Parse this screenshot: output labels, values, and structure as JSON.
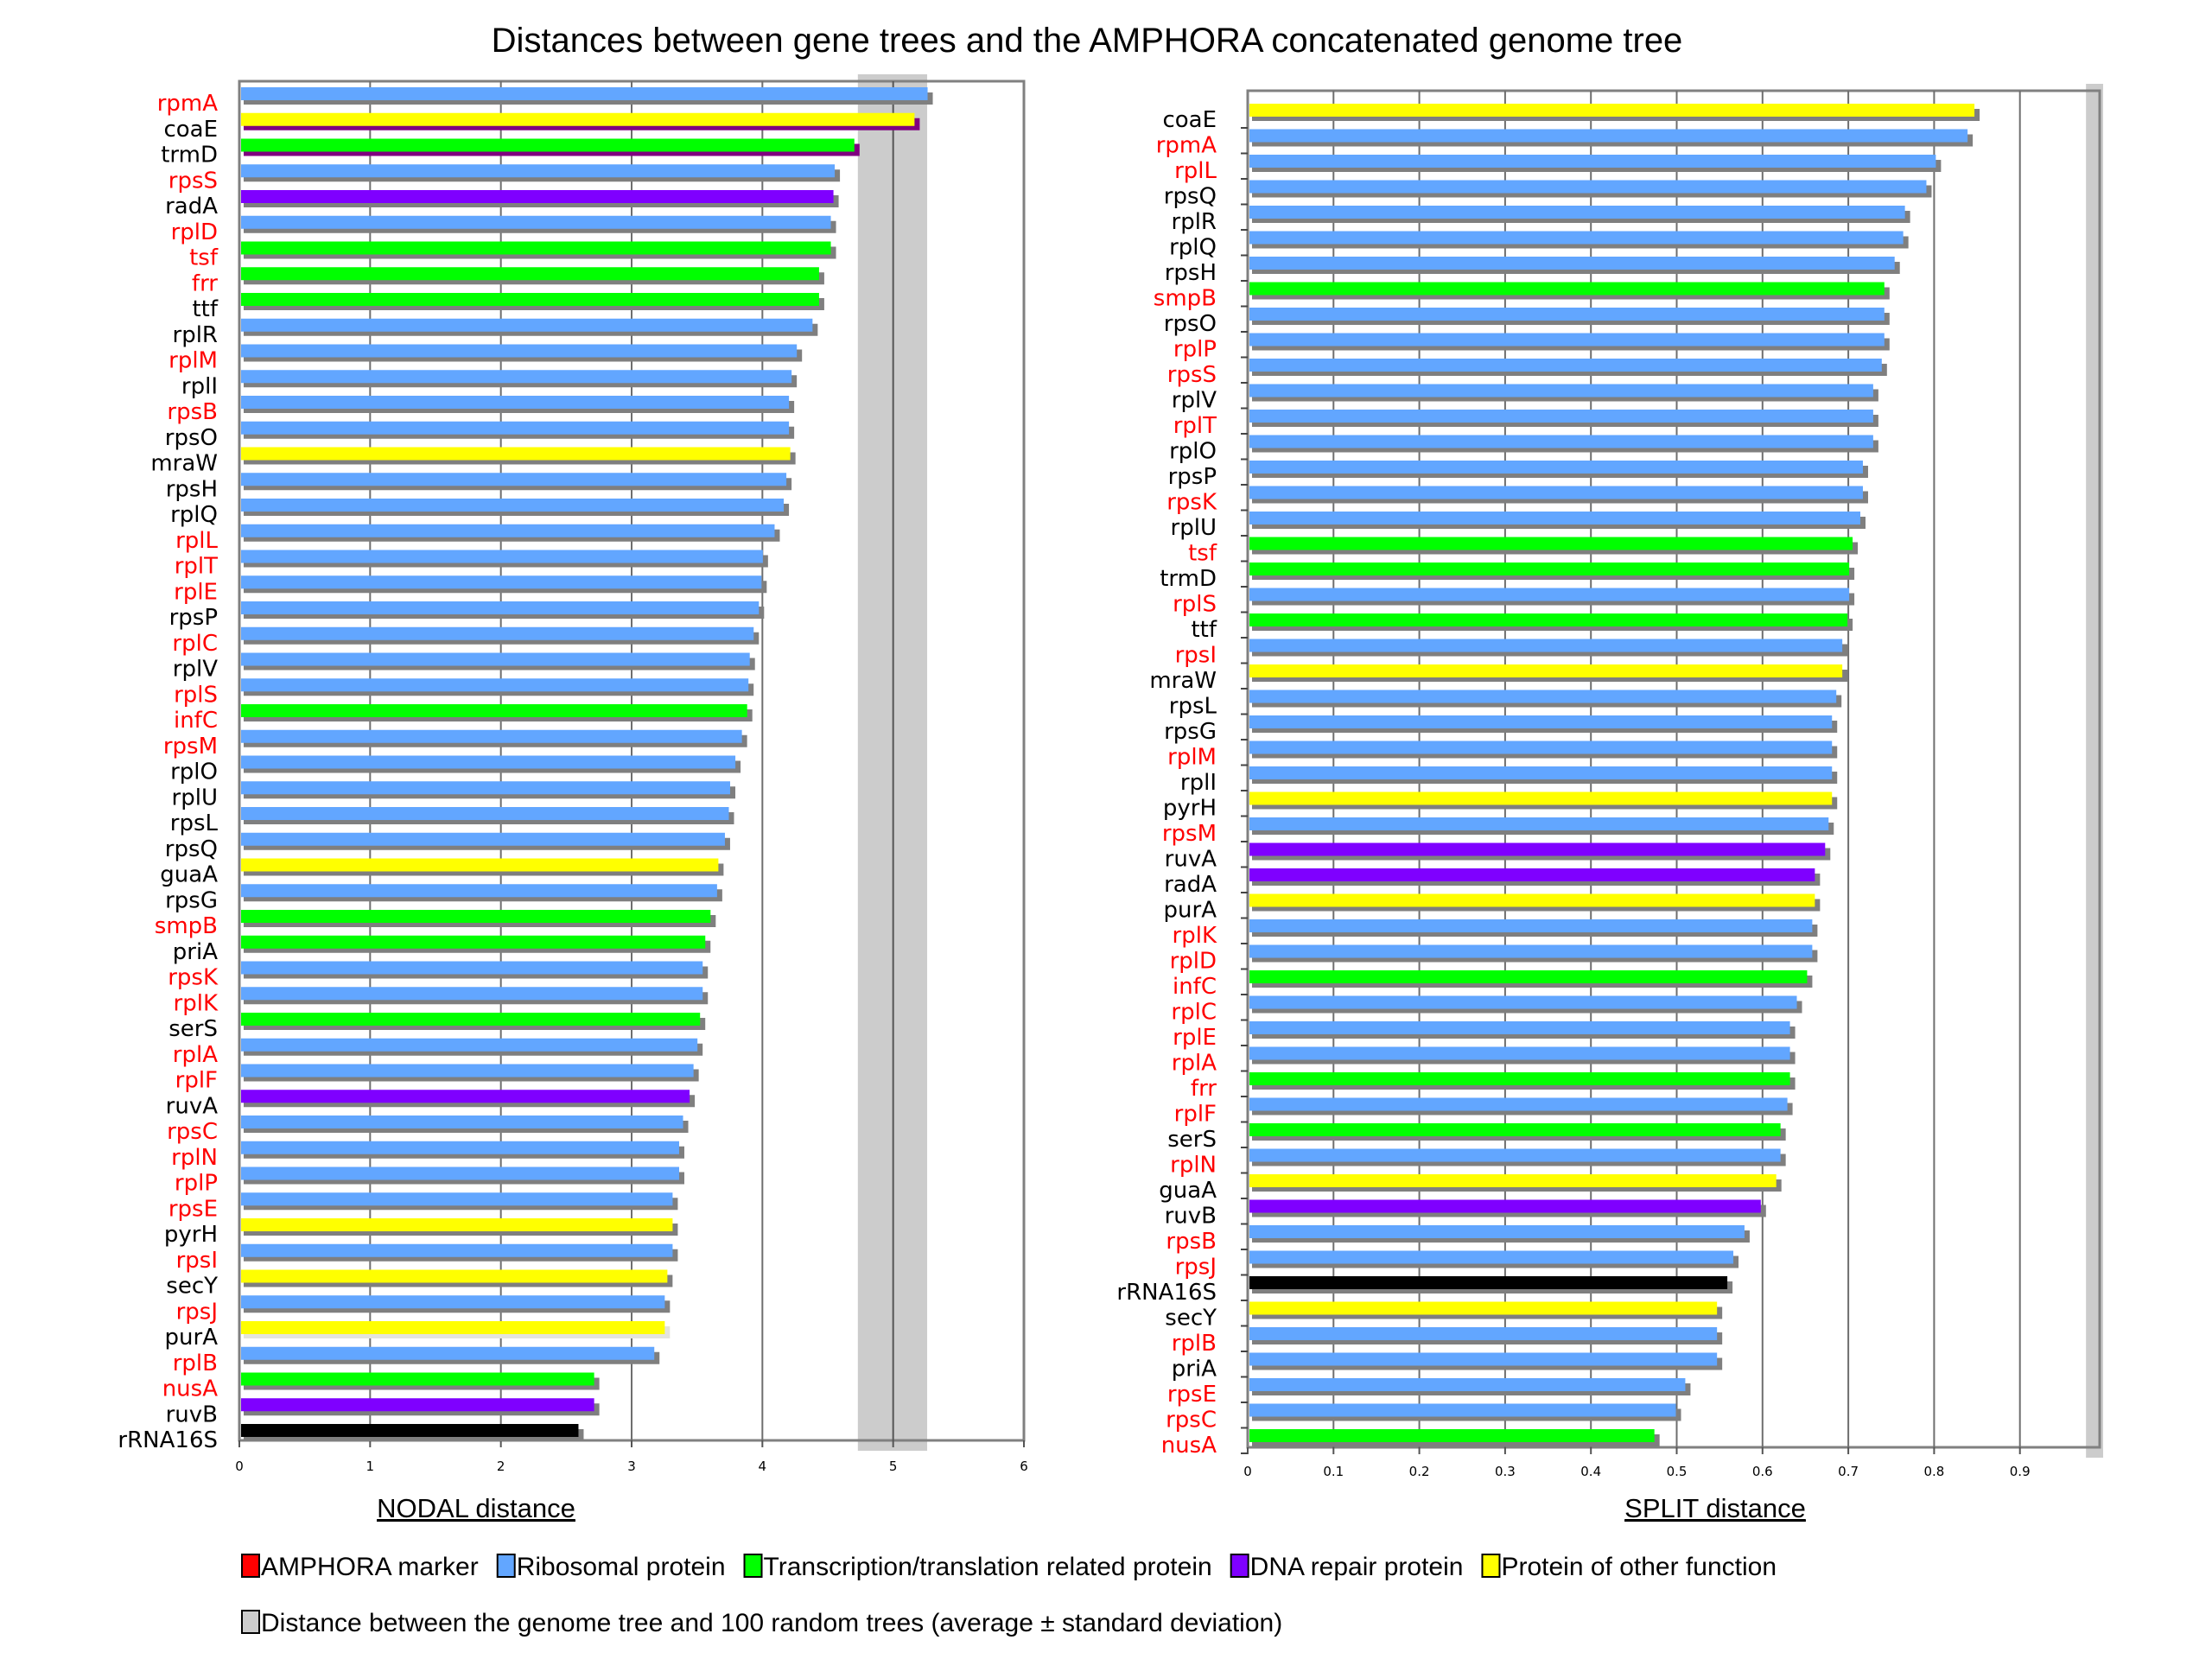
{
  "title": "Distances between gene trees and the AMPHORA concatenated genome tree",
  "colors": {
    "amphora_label": "#ff0000",
    "plain_label": "#000000",
    "ribosomal": "#62a6ff",
    "transcription": "#00ff00",
    "dna_repair": "#7f00ff",
    "other": "#ffff00",
    "rrna": "#000000",
    "random_band": "#cccccc",
    "shadow": "#7f7f7f"
  },
  "legend": {
    "items": [
      {
        "label": "AMPHORA marker",
        "color": "#ff0000"
      },
      {
        "label": "Ribosomal protein",
        "color": "#62a6ff"
      },
      {
        "label": "Transcription/translation related protein",
        "color": "#00ff00"
      },
      {
        "label": "DNA repair protein",
        "color": "#7f00ff"
      },
      {
        "label": " Protein of other function",
        "color": "#ffff00"
      }
    ],
    "random": {
      "label": "Distance between the genome tree and 100 random trees (average ± standard deviation)",
      "color": "#cccccc"
    }
  },
  "chart_data": [
    {
      "type": "bar",
      "orientation": "horizontal",
      "xlabel": "NODAL distance",
      "xlim": [
        0,
        6
      ],
      "xticks": [
        "0",
        "1",
        "2",
        "3",
        "4",
        "5",
        "6"
      ],
      "grid": true,
      "random_trees": {
        "mean": 5.0,
        "low": 4.73,
        "high": 5.26
      },
      "categories": [
        "rpmA",
        "coaE",
        "trmD",
        "rpsS",
        "radA",
        "rplD",
        "tsf",
        "frr",
        "ttf",
        "rplR",
        "rplM",
        "rplI",
        "rpsB",
        "rpsO",
        "mraW",
        "rpsH",
        "rplQ",
        "rplL",
        "rplT",
        "rplE",
        "rpsP",
        "rplC",
        "rplV",
        "rplS",
        "infC",
        "rpsM",
        "rplO",
        "rplU",
        "rpsL",
        "rpsQ",
        "guaA",
        "rpsG",
        "smpB",
        "priA",
        "rpsK",
        "rplK",
        "serS",
        "rplA",
        "rplF",
        "ruvA",
        "rpsC",
        "rplN",
        "rplP",
        "rpsE",
        "pyrH",
        "rpsI",
        "secY",
        "rpsJ",
        "purA",
        "rplB",
        "nusA",
        "ruvB",
        "rRNA16S"
      ],
      "values": [
        5.27,
        5.17,
        4.71,
        4.56,
        4.55,
        4.53,
        4.53,
        4.44,
        4.44,
        4.39,
        4.27,
        4.23,
        4.21,
        4.21,
        4.22,
        4.19,
        4.17,
        4.1,
        4.01,
        4.0,
        3.98,
        3.94,
        3.91,
        3.9,
        3.89,
        3.85,
        3.8,
        3.76,
        3.75,
        3.72,
        3.67,
        3.66,
        3.61,
        3.57,
        3.55,
        3.55,
        3.53,
        3.51,
        3.48,
        3.45,
        3.4,
        3.37,
        3.37,
        3.32,
        3.32,
        3.32,
        3.28,
        3.26,
        3.26,
        3.18,
        2.72,
        2.72,
        2.6
      ],
      "groups": [
        "ribosomal",
        "other",
        "transcription",
        "ribosomal",
        "dna_repair",
        "ribosomal",
        "transcription",
        "transcription",
        "transcription",
        "ribosomal",
        "ribosomal",
        "ribosomal",
        "ribosomal",
        "ribosomal",
        "other",
        "ribosomal",
        "ribosomal",
        "ribosomal",
        "ribosomal",
        "ribosomal",
        "ribosomal",
        "ribosomal",
        "ribosomal",
        "ribosomal",
        "transcription",
        "ribosomal",
        "ribosomal",
        "ribosomal",
        "ribosomal",
        "ribosomal",
        "other",
        "ribosomal",
        "transcription",
        "transcription",
        "ribosomal",
        "ribosomal",
        "transcription",
        "ribosomal",
        "ribosomal",
        "dna_repair",
        "ribosomal",
        "ribosomal",
        "ribosomal",
        "ribosomal",
        "other",
        "ribosomal",
        "other",
        "ribosomal",
        "other",
        "ribosomal",
        "transcription",
        "dna_repair",
        "rrna"
      ],
      "amphora_marker": [
        true,
        false,
        false,
        true,
        false,
        true,
        true,
        true,
        false,
        false,
        true,
        false,
        true,
        false,
        false,
        false,
        false,
        true,
        true,
        true,
        false,
        true,
        false,
        true,
        true,
        true,
        false,
        false,
        false,
        false,
        false,
        false,
        true,
        false,
        true,
        true,
        false,
        true,
        true,
        false,
        true,
        true,
        true,
        true,
        false,
        true,
        false,
        true,
        false,
        true,
        true,
        false,
        false
      ]
    },
    {
      "type": "bar",
      "orientation": "horizontal",
      "xlabel": "SPLIT distance",
      "xlim": [
        0,
        1
      ],
      "xticks": [
        "0",
        "0.1",
        "0.2",
        "0.3",
        "0.4",
        "0.5",
        "0.6",
        "0.7",
        "0.8",
        "0.9"
      ],
      "grid": true,
      "random_trees": {
        "low": 0.977,
        "high": 0.997
      },
      "categories": [
        "coaE",
        "rpmA",
        "rplL",
        "rpsQ",
        "rplR",
        "rplQ",
        "rpsH",
        "smpB",
        "rpsO",
        "rplP",
        "rpsS",
        "rplV",
        "rplT",
        "rplO",
        "rpsP",
        "rpsK",
        "rplU",
        "tsf",
        "trmD",
        "rplS",
        "ttf",
        "rpsI",
        "mraW",
        "rpsL",
        "rpsG",
        "rplM",
        "rplI",
        "pyrH",
        "rpsM",
        "ruvA",
        "radA",
        "purA",
        "rplK",
        "rplD",
        "infC",
        "rplC",
        "rplE",
        "rplA",
        "frr",
        "rplF",
        "serS",
        "rplN",
        "guaA",
        "ruvB",
        "rpsB",
        "rpsJ",
        "rRNA16S",
        "secY",
        "rplB",
        "priA",
        "rpsE",
        "rpsC",
        "nusA"
      ],
      "values": [
        0.848,
        0.84,
        0.803,
        0.792,
        0.767,
        0.765,
        0.755,
        0.743,
        0.743,
        0.743,
        0.74,
        0.73,
        0.73,
        0.73,
        0.718,
        0.718,
        0.715,
        0.706,
        0.702,
        0.702,
        0.7,
        0.694,
        0.694,
        0.687,
        0.682,
        0.682,
        0.682,
        0.682,
        0.678,
        0.674,
        0.662,
        0.662,
        0.659,
        0.659,
        0.653,
        0.641,
        0.633,
        0.633,
        0.633,
        0.63,
        0.622,
        0.622,
        0.617,
        0.599,
        0.58,
        0.567,
        0.56,
        0.548,
        0.548,
        0.548,
        0.511,
        0.5,
        0.475
      ],
      "groups": [
        "other",
        "ribosomal",
        "ribosomal",
        "ribosomal",
        "ribosomal",
        "ribosomal",
        "ribosomal",
        "transcription",
        "ribosomal",
        "ribosomal",
        "ribosomal",
        "ribosomal",
        "ribosomal",
        "ribosomal",
        "ribosomal",
        "ribosomal",
        "ribosomal",
        "transcription",
        "transcription",
        "ribosomal",
        "transcription",
        "ribosomal",
        "other",
        "ribosomal",
        "ribosomal",
        "ribosomal",
        "ribosomal",
        "other",
        "ribosomal",
        "dna_repair",
        "dna_repair",
        "other",
        "ribosomal",
        "ribosomal",
        "transcription",
        "ribosomal",
        "ribosomal",
        "ribosomal",
        "transcription",
        "ribosomal",
        "transcription",
        "ribosomal",
        "other",
        "dna_repair",
        "ribosomal",
        "ribosomal",
        "rrna",
        "other",
        "ribosomal",
        "ribosomal",
        "ribosomal",
        "ribosomal",
        "transcription"
      ],
      "amphora_marker": [
        false,
        true,
        true,
        false,
        false,
        false,
        false,
        true,
        false,
        true,
        true,
        false,
        true,
        false,
        false,
        true,
        false,
        true,
        false,
        true,
        false,
        true,
        false,
        false,
        false,
        true,
        false,
        false,
        true,
        false,
        false,
        false,
        true,
        true,
        true,
        true,
        true,
        true,
        true,
        true,
        false,
        true,
        false,
        false,
        true,
        true,
        false,
        false,
        true,
        false,
        true,
        true,
        true
      ]
    }
  ]
}
